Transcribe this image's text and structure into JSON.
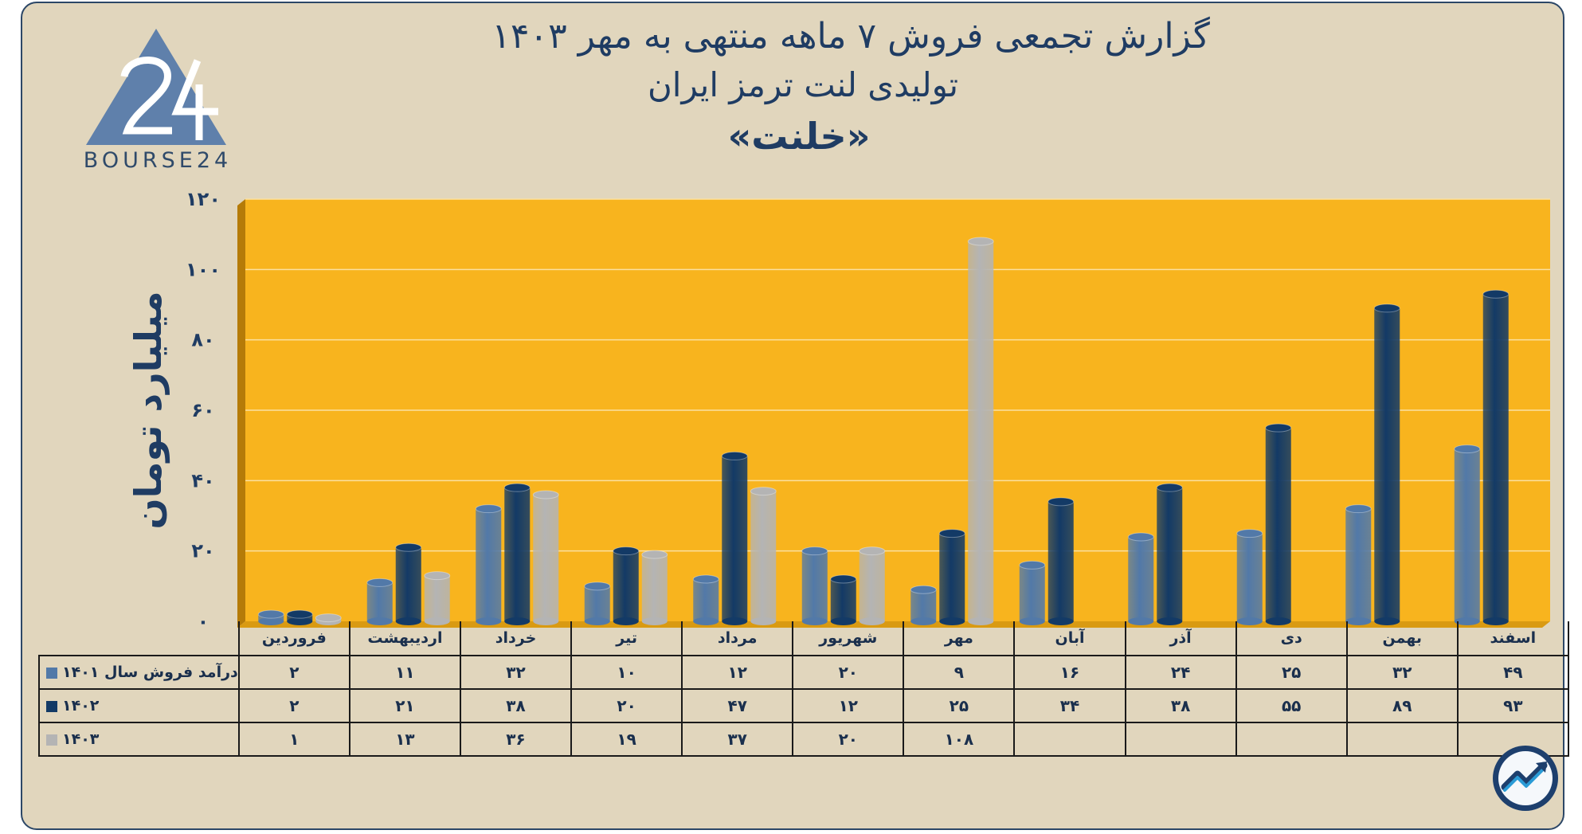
{
  "header": {
    "title_line1": "گزارش تجمعی فروش ۷ ماهه منتهی به مهر ۱۴۰۳",
    "title_line2": "تولیدی لنت ترمز ایران",
    "title_line3": "«خلنت»",
    "logo_text": "BOURSE24",
    "logo_mark": "24"
  },
  "colors": {
    "plot_background": "#f8b41e",
    "card_background": "#e1d6bd",
    "series_1401": "#5279a8",
    "series_1402": "#133a66",
    "series_1403": "#b4b4b4"
  },
  "chart_data": {
    "type": "bar",
    "ylabel": "میلیارد تومان",
    "ylim": [
      0,
      120
    ],
    "yticks": [
      "۰",
      "۲۰",
      "۴۰",
      "۶۰",
      "۸۰",
      "۱۰۰",
      "۱۲۰"
    ],
    "ytick_values": [
      0,
      20,
      40,
      60,
      80,
      100,
      120
    ],
    "grid": true,
    "categories": [
      "فروردین",
      "اردیبهشت",
      "خرداد",
      "تیر",
      "مرداد",
      "شهریور",
      "مهر",
      "آبان",
      "آذر",
      "دی",
      "بهمن",
      "اسفند"
    ],
    "series": [
      {
        "name": "درآمد فروش سال ۱۴۰۱",
        "color": "#5279a8",
        "values": [
          2,
          11,
          32,
          10,
          12,
          20,
          9,
          16,
          24,
          25,
          32,
          49
        ],
        "labels": [
          "۲",
          "۱۱",
          "۳۲",
          "۱۰",
          "۱۲",
          "۲۰",
          "۹",
          "۱۶",
          "۲۴",
          "۲۵",
          "۳۲",
          "۴۹"
        ]
      },
      {
        "name": "۱۴۰۲",
        "color": "#133a66",
        "values": [
          2,
          21,
          38,
          20,
          47,
          12,
          25,
          34,
          38,
          55,
          89,
          93
        ],
        "labels": [
          "۲",
          "۲۱",
          "۳۸",
          "۲۰",
          "۴۷",
          "۱۲",
          "۲۵",
          "۳۴",
          "۳۸",
          "۵۵",
          "۸۹",
          "۹۳"
        ]
      },
      {
        "name": "۱۴۰۳",
        "color": "#b4b4b4",
        "values": [
          1,
          13,
          36,
          19,
          37,
          20,
          108,
          null,
          null,
          null,
          null,
          null
        ],
        "labels": [
          "۱",
          "۱۳",
          "۳۶",
          "۱۹",
          "۳۷",
          "۲۰",
          "۱۰۸",
          "",
          "",
          "",
          "",
          ""
        ]
      }
    ]
  }
}
